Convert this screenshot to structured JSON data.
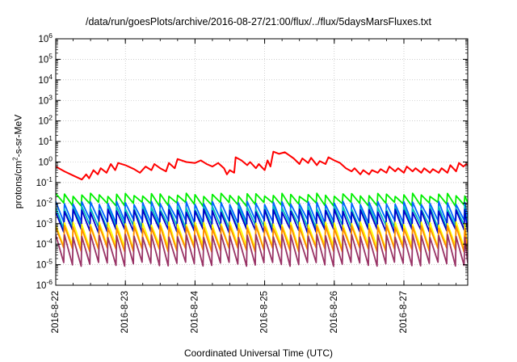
{
  "chart_data": {
    "type": "line",
    "title": "/data/run/goesPlots/archive/2016-08-27/21:00/flux/../flux/5daysMarsFluxes.txt",
    "xlabel": "Coordinated Universal Time (UTC)",
    "ylabel_prefix": "protons/cm",
    "ylabel_sup": "2",
    "ylabel_suffix": "-s-sr-MeV",
    "yscale": "log",
    "ylim": [
      1e-06,
      1000000.0
    ],
    "xlim": [
      "2016-8-22",
      "2016-8-27 22:00"
    ],
    "x_ticks": [
      "2016-8-22",
      "2016-8-23",
      "2016-8-24",
      "2016-8-25",
      "2016-8-26",
      "2016-8-27"
    ],
    "y_ticks": [
      {
        "base": "10",
        "exp": "-6"
      },
      {
        "base": "10",
        "exp": "-5"
      },
      {
        "base": "10",
        "exp": "-4"
      },
      {
        "base": "10",
        "exp": "-3"
      },
      {
        "base": "10",
        "exp": "-2"
      },
      {
        "base": "10",
        "exp": "-1"
      },
      {
        "base": "10",
        "exp": "0"
      },
      {
        "base": "10",
        "exp": "1"
      },
      {
        "base": "10",
        "exp": "2"
      },
      {
        "base": "10",
        "exp": "3"
      },
      {
        "base": "10",
        "exp": "4"
      },
      {
        "base": "10",
        "exp": "5"
      },
      {
        "base": "10",
        "exp": "6"
      }
    ],
    "grid": true,
    "series": [
      {
        "color": "#ff0000",
        "style": "trend",
        "points": [
          [
            "2016-8-22 00:00",
            0.6
          ],
          [
            "2016-8-22 03:00",
            0.35
          ],
          [
            "2016-8-22 06:00",
            0.22
          ],
          [
            "2016-8-22 09:00",
            0.14
          ],
          [
            "2016-8-22 10:30",
            0.25
          ],
          [
            "2016-8-22 11:30",
            0.16
          ],
          [
            "2016-8-22 13:00",
            0.4
          ],
          [
            "2016-8-22 14:30",
            0.25
          ],
          [
            "2016-8-22 15:30",
            0.5
          ],
          [
            "2016-8-22 17:30",
            0.3
          ],
          [
            "2016-8-22 19:00",
            0.8
          ],
          [
            "2016-8-22 20:30",
            0.4
          ],
          [
            "2016-8-22 21:30",
            0.9
          ],
          [
            "2016-8-23 00:00",
            0.7
          ],
          [
            "2016-8-23 03:00",
            0.45
          ],
          [
            "2016-8-23 05:00",
            0.3
          ],
          [
            "2016-8-23 07:00",
            0.6
          ],
          [
            "2016-8-23 09:00",
            0.4
          ],
          [
            "2016-8-23 10:00",
            0.8
          ],
          [
            "2016-8-23 12:00",
            0.5
          ],
          [
            "2016-8-23 14:00",
            0.35
          ],
          [
            "2016-8-23 15:00",
            0.9
          ],
          [
            "2016-8-23 17:00",
            0.5
          ],
          [
            "2016-8-23 18:00",
            1.4
          ],
          [
            "2016-8-23 21:00",
            1.0
          ],
          [
            "2016-8-24 00:00",
            0.9
          ],
          [
            "2016-8-24 02:00",
            1.2
          ],
          [
            "2016-8-24 04:00",
            0.8
          ],
          [
            "2016-8-24 06:00",
            0.6
          ],
          [
            "2016-8-24 08:00",
            0.9
          ],
          [
            "2016-8-24 10:00",
            0.5
          ],
          [
            "2016-8-24 11:00",
            0.25
          ],
          [
            "2016-8-24 12:00",
            0.4
          ],
          [
            "2016-8-24 13:30",
            0.3
          ],
          [
            "2016-8-24 14:00",
            1.7
          ],
          [
            "2016-8-24 16:00",
            1.2
          ],
          [
            "2016-8-24 18:00",
            0.7
          ],
          [
            "2016-8-24 19:00",
            1.0
          ],
          [
            "2016-8-24 21:00",
            0.5
          ],
          [
            "2016-8-24 22:00",
            0.8
          ],
          [
            "2016-8-25 00:00",
            0.4
          ],
          [
            "2016-8-25 01:00",
            1.2
          ],
          [
            "2016-8-25 02:00",
            0.6
          ],
          [
            "2016-8-25 03:00",
            3.2
          ],
          [
            "2016-8-25 05:00",
            2.5
          ],
          [
            "2016-8-25 07:00",
            3.0
          ],
          [
            "2016-8-25 10:00",
            1.5
          ],
          [
            "2016-8-25 12:00",
            0.8
          ],
          [
            "2016-8-25 13:00",
            1.5
          ],
          [
            "2016-8-25 15:00",
            0.9
          ],
          [
            "2016-8-25 16:00",
            1.6
          ],
          [
            "2016-8-25 18:00",
            0.7
          ],
          [
            "2016-8-25 19:00",
            1.1
          ],
          [
            "2016-8-25 21:00",
            0.8
          ],
          [
            "2016-8-25 22:00",
            1.7
          ],
          [
            "2016-8-26 00:00",
            1.2
          ],
          [
            "2016-8-26 02:00",
            0.9
          ],
          [
            "2016-8-26 04:00",
            0.5
          ],
          [
            "2016-8-26 06:00",
            0.35
          ],
          [
            "2016-8-26 07:00",
            0.5
          ],
          [
            "2016-8-26 09:00",
            0.25
          ],
          [
            "2016-8-26 10:00",
            0.4
          ],
          [
            "2016-8-26 12:00",
            0.25
          ],
          [
            "2016-8-26 13:00",
            0.4
          ],
          [
            "2016-8-26 15:00",
            0.3
          ],
          [
            "2016-8-26 16:00",
            0.45
          ],
          [
            "2016-8-26 18:00",
            0.3
          ],
          [
            "2016-8-26 19:00",
            0.6
          ],
          [
            "2016-8-26 21:00",
            0.35
          ],
          [
            "2016-8-26 22:00",
            0.5
          ],
          [
            "2016-8-27 00:00",
            0.3
          ],
          [
            "2016-8-27 01:00",
            0.6
          ],
          [
            "2016-8-27 03:00",
            0.35
          ],
          [
            "2016-8-27 04:00",
            0.5
          ],
          [
            "2016-8-27 06:00",
            0.3
          ],
          [
            "2016-8-27 07:00",
            0.5
          ],
          [
            "2016-8-27 09:00",
            0.3
          ],
          [
            "2016-8-27 10:00",
            0.45
          ],
          [
            "2016-8-27 12:00",
            0.3
          ],
          [
            "2016-8-27 13:00",
            0.5
          ],
          [
            "2016-8-27 15:00",
            0.3
          ],
          [
            "2016-8-27 16:00",
            0.7
          ],
          [
            "2016-8-27 18:00",
            0.35
          ],
          [
            "2016-8-27 19:00",
            0.9
          ],
          [
            "2016-8-27 20:30",
            0.6
          ],
          [
            "2016-8-27 21:30",
            0.8
          ],
          [
            "2016-8-27 22:00",
            0.7
          ]
        ]
      },
      {
        "color": "#00ee00",
        "style": "sawtooth",
        "period_hours": 3,
        "start": "2016-8-22",
        "end": "2016-8-27 22:00",
        "range": [
          0.01,
          0.03
        ]
      },
      {
        "color": "#0066ff",
        "style": "sawtooth",
        "period_hours": 3,
        "start": "2016-8-22",
        "end": "2016-8-27 22:00",
        "range": [
          0.0015,
          0.012
        ]
      },
      {
        "color": "#00bfbf",
        "style": "sawtooth",
        "period_hours": 3,
        "start": "2016-8-22",
        "end": "2016-8-27 22:00",
        "range": [
          0.0008,
          0.007
        ]
      },
      {
        "color": "#0000cc",
        "style": "sawtooth",
        "period_hours": 3,
        "start": "2016-8-22",
        "end": "2016-8-27 22:00",
        "range": [
          0.0005,
          0.005
        ]
      },
      {
        "color": "#ffff00",
        "style": "sawtooth",
        "period_hours": 3,
        "start": "2016-8-22",
        "end": "2016-8-27 22:00",
        "range": [
          8e-05,
          0.0012
        ]
      },
      {
        "color": "#ff8c00",
        "style": "sawtooth",
        "period_hours": 3,
        "start": "2016-8-22",
        "end": "2016-8-27 22:00",
        "range": [
          6e-05,
          0.0008
        ]
      },
      {
        "color": "#993366",
        "style": "sawtooth",
        "period_hours": 3,
        "start": "2016-8-22",
        "end": "2016-8-27 22:00",
        "range": [
          1.2e-05,
          0.0003
        ]
      }
    ]
  }
}
